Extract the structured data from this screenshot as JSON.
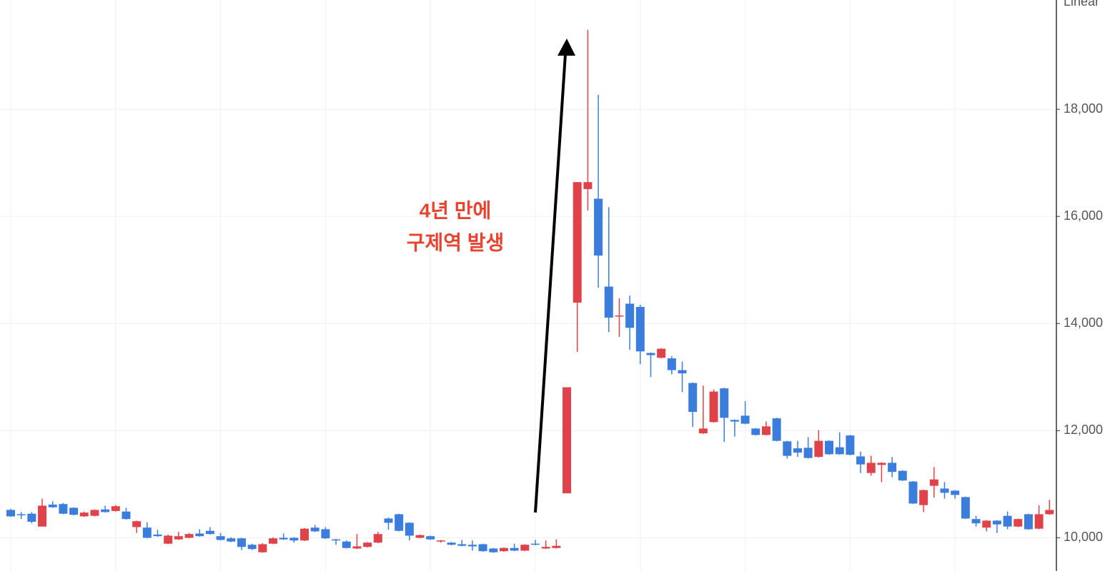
{
  "chart_data": {
    "type": "candlestick",
    "scale_label": "Linear",
    "annotation_lines": [
      "4년 만에",
      "구제역 발생"
    ],
    "up_color": "#e0424a",
    "down_color": "#3b7ddd",
    "grid": true,
    "ylim": [
      9380,
      20040
    ],
    "yticks": [
      {
        "value": 10000,
        "label": "10,000"
      },
      {
        "value": 12000,
        "label": "12,000"
      },
      {
        "value": 14000,
        "label": "14,000"
      },
      {
        "value": 16000,
        "label": "16,000"
      },
      {
        "value": 18000,
        "label": "18,000"
      }
    ],
    "open": [
      10520,
      10440,
      10450,
      10210,
      10620,
      10630,
      10560,
      10400,
      10410,
      10530,
      10500,
      10490,
      10200,
      10190,
      10060,
      9890,
      9970,
      10000,
      10080,
      10130,
      10030,
      9990,
      9990,
      9870,
      9730,
      9890,
      10000,
      10000,
      9950,
      10190,
      10160,
      9970,
      9930,
      9800,
      9830,
      9910,
      10360,
      10440,
      10280,
      10000,
      10030,
      9930,
      9910,
      9880,
      9870,
      9880,
      9800,
      9750,
      9810,
      9760,
      9890,
      9800,
      9810,
      10830,
      14390,
      16510,
      16330,
      14690,
      14130,
      14370,
      14310,
      13450,
      13360,
      13350,
      13130,
      12890,
      11950,
      12160,
      12790,
      12200,
      12280,
      12040,
      11920,
      12230,
      11800,
      11670,
      11680,
      11510,
      11810,
      11690,
      11910,
      11520,
      11210,
      11360,
      11400,
      11250,
      11050,
      10610,
      10970,
      10920,
      10880,
      10760,
      10350,
      10190,
      10320,
      10410,
      10210,
      10440,
      10170,
      10440
    ],
    "high": [
      10540,
      10480,
      10480,
      10730,
      10680,
      10650,
      10570,
      10490,
      10530,
      10600,
      10610,
      10560,
      10320,
      10290,
      10150,
      10060,
      10110,
      10090,
      10160,
      10200,
      10090,
      10010,
      10000,
      9890,
      9900,
      10010,
      10080,
      10010,
      10180,
      10240,
      10200,
      9980,
      9950,
      10070,
      9920,
      10110,
      10380,
      10450,
      10290,
      10060,
      10040,
      9960,
      9920,
      9960,
      9950,
      9890,
      9810,
      9820,
      9890,
      9880,
      9960,
      9950,
      9970,
      12810,
      16640,
      19480,
      18270,
      16170,
      14470,
      14520,
      14350,
      13460,
      13540,
      13390,
      13290,
      12900,
      12840,
      12770,
      12800,
      12210,
      12550,
      12050,
      12170,
      12240,
      11810,
      11810,
      11880,
      12010,
      11820,
      11970,
      11920,
      11610,
      11530,
      11410,
      11510,
      11260,
      11060,
      10900,
      11320,
      11040,
      10890,
      10770,
      10410,
      10330,
      10330,
      10490,
      10360,
      10450,
      10610,
      10710
    ],
    "low": [
      10390,
      10350,
      10270,
      10210,
      10560,
      10440,
      10420,
      10390,
      10400,
      10470,
      10490,
      10340,
      10090,
      9990,
      10020,
      9880,
      9960,
      9990,
      10020,
      10060,
      9950,
      9920,
      9770,
      9770,
      9720,
      9880,
      9960,
      9910,
      9940,
      10110,
      9980,
      9870,
      9800,
      9790,
      9820,
      9900,
      10150,
      10120,
      9950,
      9990,
      9960,
      9910,
      9860,
      9840,
      9760,
      9740,
      9720,
      9740,
      9750,
      9750,
      9860,
      9790,
      9800,
      10830,
      13470,
      16110,
      14670,
      13840,
      13750,
      13510,
      13240,
      13000,
      13350,
      13050,
      12720,
      12070,
      11940,
      12150,
      11790,
      11890,
      12120,
      11910,
      11910,
      11800,
      11480,
      11510,
      11480,
      11500,
      11550,
      11550,
      11540,
      11210,
      11160,
      11040,
      11130,
      11060,
      10630,
      10480,
      10750,
      10730,
      10730,
      10350,
      10210,
      10120,
      10090,
      10160,
      10200,
      10150,
      10160,
      10430
    ],
    "close": [
      10400,
      10420,
      10300,
      10600,
      10570,
      10450,
      10430,
      10470,
      10520,
      10480,
      10590,
      10350,
      10310,
      10000,
      10030,
      10040,
      10030,
      10070,
      10030,
      10070,
      9960,
      9930,
      9830,
      9790,
      9880,
      9990,
      9970,
      9950,
      10170,
      10120,
      9990,
      9950,
      9810,
      9840,
      9910,
      10070,
      10280,
      10130,
      10040,
      10050,
      9970,
      9950,
      9870,
      9850,
      9840,
      9750,
      9730,
      9810,
      9760,
      9870,
      9870,
      9830,
      9850,
      12810,
      16640,
      16640,
      15270,
      14110,
      14150,
      13920,
      13480,
      13410,
      13530,
      13130,
      13070,
      12350,
      12040,
      12730,
      12240,
      12170,
      12130,
      11920,
      12080,
      11810,
      11530,
      11590,
      11490,
      11810,
      11560,
      11560,
      11550,
      11370,
      11400,
      11400,
      11230,
      11070,
      10640,
      10890,
      11090,
      10840,
      10800,
      10360,
      10270,
      10320,
      10250,
      10210,
      10350,
      10160,
      10440,
      10520
    ]
  }
}
